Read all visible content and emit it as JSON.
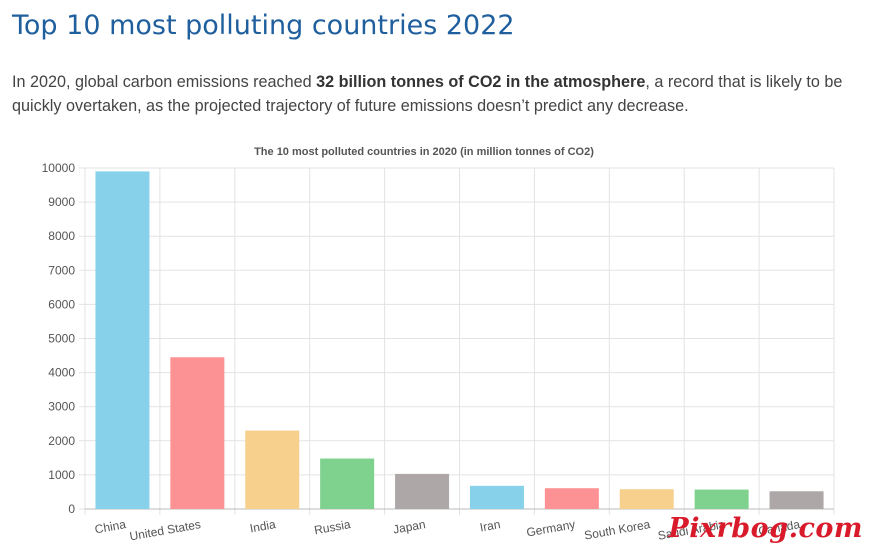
{
  "page": {
    "title": "Top 10 most polluting countries 2022",
    "intro_before": "In 2020, global carbon emissions reached ",
    "intro_bold": "32 billion tonnes of CO2 in the atmosphere",
    "intro_after": ", a record that is likely to be quickly overtaken, as the projected trajectory of future emissions doesn’t predict any decrease."
  },
  "chart_data": {
    "type": "bar",
    "title": "The 10 most polluted countries in 2020 (in million tonnes of CO2)",
    "categories": [
      "China",
      "United States",
      "India",
      "Russia",
      "Japan",
      "Iran",
      "Germany",
      "South Korea",
      "Saudi Arabia",
      "Canada"
    ],
    "values": [
      9900,
      4450,
      2300,
      1480,
      1030,
      680,
      610,
      580,
      570,
      520
    ],
    "colors": [
      "#87d2ea",
      "#fc9293",
      "#f7d08e",
      "#7ed28e",
      "#ada7a8",
      "#87d2ea",
      "#fc9293",
      "#f7d08e",
      "#7ed28e",
      "#ada7a8"
    ],
    "ylim": [
      0,
      10000
    ],
    "yticks": [
      0,
      1000,
      2000,
      3000,
      4000,
      5000,
      6000,
      7000,
      8000,
      9000,
      10000
    ],
    "xlabel": "",
    "ylabel": "",
    "grid": true
  },
  "watermark": "Pixrbog.com"
}
